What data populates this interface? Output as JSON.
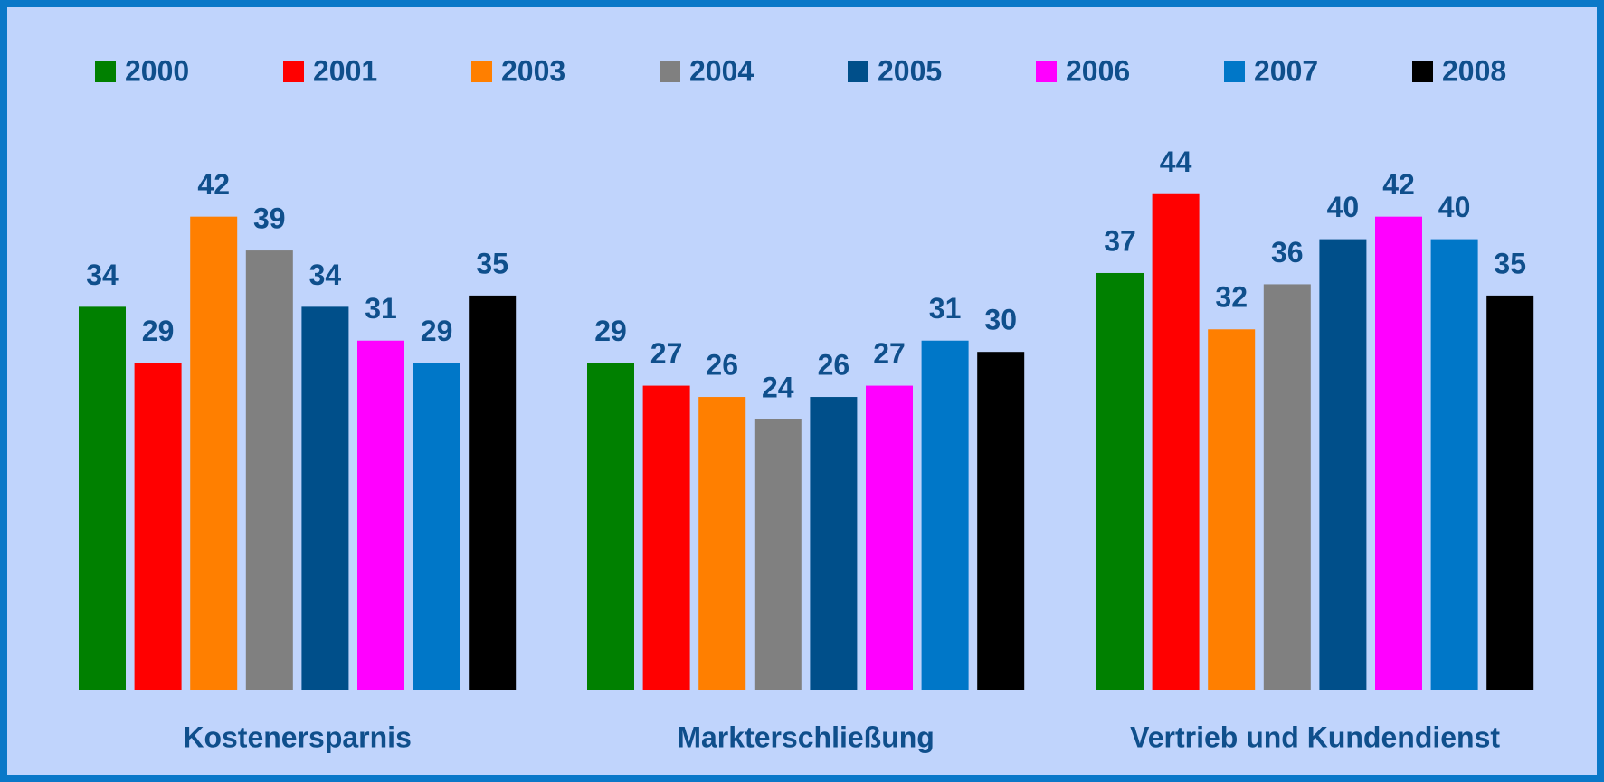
{
  "chart_data": {
    "type": "bar",
    "categories": [
      "Kostenersparnis",
      "Markterschließung",
      "Vertrieb und Kundendienst"
    ],
    "series": [
      {
        "name": "2000",
        "color": "#008000",
        "values": [
          34,
          29,
          37
        ]
      },
      {
        "name": "2001",
        "color": "#ff0000",
        "values": [
          29,
          27,
          44
        ]
      },
      {
        "name": "2003",
        "color": "#ff7f00",
        "values": [
          42,
          26,
          32
        ]
      },
      {
        "name": "2004",
        "color": "#808080",
        "values": [
          39,
          24,
          36
        ]
      },
      {
        "name": "2005",
        "color": "#004f8a",
        "values": [
          34,
          26,
          40
        ]
      },
      {
        "name": "2006",
        "color": "#ff00ff",
        "values": [
          31,
          27,
          42
        ]
      },
      {
        "name": "2007",
        "color": "#0077c8",
        "values": [
          29,
          31,
          40
        ]
      },
      {
        "name": "2008",
        "color": "#000000",
        "values": [
          35,
          30,
          35
        ]
      }
    ],
    "ylim": [
      0,
      50
    ],
    "legend": "top"
  }
}
